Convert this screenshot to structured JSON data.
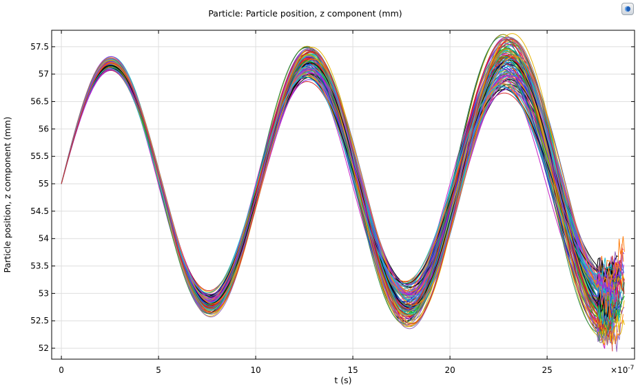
{
  "toolbar": {
    "app_icon": "comsol-logo-icon"
  },
  "chart_data": {
    "type": "line",
    "title": "Particle: Particle position, z component (mm)",
    "xlabel": "t (s)",
    "ylabel": "Particle position, z component (mm)",
    "x_multiplier_label": "×10",
    "x_multiplier_exponent": "-7",
    "xlim": [
      -0.5,
      29.5
    ],
    "ylim": [
      51.8,
      57.8
    ],
    "xticks": [
      0,
      5,
      10,
      15,
      20,
      25
    ],
    "xtick_labels": [
      "0",
      "5",
      "10",
      "15",
      "20",
      "25"
    ],
    "yticks": [
      52,
      52.5,
      53,
      53.5,
      54,
      54.5,
      55,
      55.5,
      56,
      56.5,
      57,
      57.5
    ],
    "ytick_labels": [
      "52",
      "52.5",
      "53",
      "53.5",
      "54",
      "54.5",
      "55",
      "55.5",
      "56",
      "56.5",
      "57",
      "57.5"
    ],
    "grid": true,
    "legend": "none",
    "series_count": 110,
    "start_point": {
      "x": 0,
      "y": 55
    },
    "oscillation_period": 10.2,
    "peaks": [
      {
        "x": 2.6,
        "y_range": [
          57.0,
          57.4
        ]
      },
      {
        "x": 13.0,
        "y_range": [
          56.6,
          57.5
        ]
      },
      {
        "x": 23.3,
        "y_range": [
          56.7,
          57.7
        ]
      }
    ],
    "troughs": [
      {
        "x": 7.8,
        "y_range": [
          52.55,
          53.2
        ]
      },
      {
        "x": 18.0,
        "y_range": [
          52.35,
          53.3
        ]
      },
      {
        "x": 28.4,
        "y_range": [
          52.4,
          53.4
        ]
      }
    ],
    "end_x_range": [
      28.2,
      29.0
    ],
    "series_colors": [
      "#1f1fbf",
      "#16b016",
      "#e21b1b",
      "#18c6c6",
      "#c61fc6",
      "#e6b400",
      "#000000",
      "#2a6fd6",
      "#8a2be2",
      "#2e8b57",
      "#ff7f0e",
      "#9467bd",
      "#17becf",
      "#d62728",
      "#7f7f7f",
      "#bcbd22"
    ]
  }
}
